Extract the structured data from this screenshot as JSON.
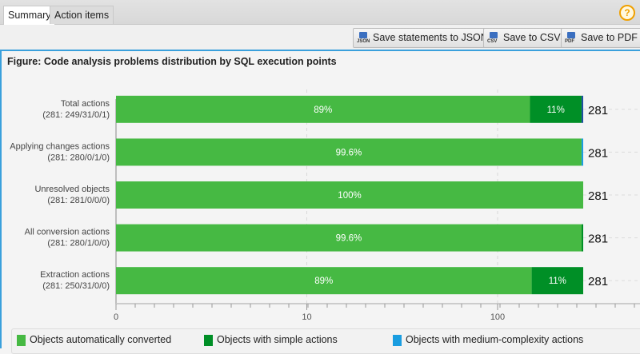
{
  "tabs": [
    {
      "label": "Summary",
      "active": true
    },
    {
      "label": "Action items",
      "active": false
    }
  ],
  "help_icon": "question-circle-icon",
  "toolbar": {
    "buttons": [
      {
        "label": "Save statements to JSON",
        "icon": "JSON"
      },
      {
        "label": "Save to CSV",
        "icon": "CSV"
      },
      {
        "label": "Save to PDF",
        "icon": "PDF"
      }
    ]
  },
  "figure_title": "Figure: Code analysis problems distribution by SQL execution points",
  "colors": {
    "auto": "#46b943",
    "simple": "#008f26",
    "medium": "#1a9de0",
    "other": "#1f4fa0"
  },
  "chart_data": {
    "type": "bar",
    "orientation": "horizontal",
    "stacked": true,
    "x_scale": "log",
    "x_ticks": [
      "0",
      "10",
      "100"
    ],
    "categories": [
      {
        "label": "Total actions",
        "sublabel": "(281: 249/31/0/1)",
        "total": 281,
        "counts": [
          249,
          31,
          0,
          1
        ],
        "pct_labels": [
          "89%",
          "11%"
        ]
      },
      {
        "label": "Applying changes actions",
        "sublabel": "(281: 280/0/1/0)",
        "total": 281,
        "counts": [
          280,
          0,
          1,
          0
        ],
        "pct_labels": [
          "99.6%",
          ""
        ]
      },
      {
        "label": "Unresolved objects",
        "sublabel": "(281: 281/0/0/0)",
        "total": 281,
        "counts": [
          281,
          0,
          0,
          0
        ],
        "pct_labels": [
          "100%",
          ""
        ]
      },
      {
        "label": "All conversion actions",
        "sublabel": "(281: 280/1/0/0)",
        "total": 281,
        "counts": [
          280,
          1,
          0,
          0
        ],
        "pct_labels": [
          "99.6%",
          ""
        ]
      },
      {
        "label": "Extraction actions",
        "sublabel": "(281: 250/31/0/0)",
        "total": 281,
        "counts": [
          250,
          31,
          0,
          0
        ],
        "pct_labels": [
          "89%",
          "11%"
        ]
      }
    ],
    "series": [
      {
        "name": "Objects automatically converted"
      },
      {
        "name": "Objects with simple actions"
      },
      {
        "name": "Objects with medium-complexity actions"
      }
    ],
    "grid": true,
    "legend": "bottom"
  }
}
